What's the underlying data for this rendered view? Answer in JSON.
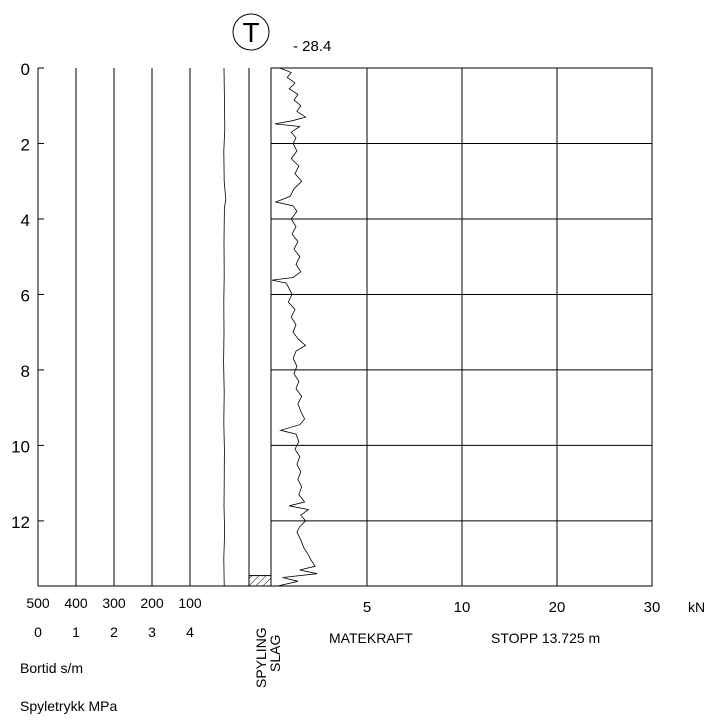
{
  "header": {
    "symbol": "T",
    "elevation": "- 28.4"
  },
  "chart_data": {
    "type": "line",
    "title": "",
    "depth_axis": {
      "ticks": [
        "0",
        "2",
        "4",
        "6",
        "8",
        "10",
        "12"
      ],
      "range": [
        0,
        13.725
      ],
      "inverted": true
    },
    "left_panel": {
      "bortid_ticks": [
        "500",
        "400",
        "300",
        "200",
        "100"
      ],
      "spyletrykk_ticks": [
        "0",
        "1",
        "2",
        "3",
        "4"
      ],
      "bortid_label": "Bortid s/m",
      "spyletrykk_label": "Spyletrykk MPa",
      "bortid_range": [
        0,
        500
      ],
      "spyletrykk_range": [
        0,
        5
      ]
    },
    "spyling_label": "SPYLING",
    "slag_label": "SLAG",
    "slag_interval": [
      13.45,
      13.725
    ],
    "right_panel": {
      "x_ticks": [
        "5",
        "10",
        "20",
        "30"
      ],
      "unit": "kN",
      "label": "MATEKRAFT",
      "grid": true
    },
    "stopp_label": "STOPP 13.725 m",
    "series": [
      {
        "id": "matekraft",
        "points": [
          [
            0.0,
            0.45
          ],
          [
            0.12,
            1.05
          ],
          [
            0.25,
            0.85
          ],
          [
            0.4,
            1.25
          ],
          [
            0.55,
            0.95
          ],
          [
            0.7,
            1.4
          ],
          [
            0.85,
            1.2
          ],
          [
            1.0,
            1.55
          ],
          [
            1.15,
            1.35
          ],
          [
            1.3,
            1.8
          ],
          [
            1.4,
            1.1
          ],
          [
            1.48,
            0.2
          ],
          [
            1.55,
            1.5
          ],
          [
            1.7,
            1.05
          ],
          [
            1.85,
            1.3
          ],
          [
            2.0,
            1.15
          ],
          [
            2.2,
            1.35
          ],
          [
            2.4,
            1.05
          ],
          [
            2.6,
            1.45
          ],
          [
            2.8,
            1.25
          ],
          [
            3.0,
            1.6
          ],
          [
            3.2,
            1.2
          ],
          [
            3.4,
            1.0
          ],
          [
            3.55,
            0.25
          ],
          [
            3.65,
            1.15
          ],
          [
            3.8,
            1.35
          ],
          [
            4.0,
            1.05
          ],
          [
            4.2,
            1.3
          ],
          [
            4.4,
            1.1
          ],
          [
            4.6,
            1.4
          ],
          [
            4.8,
            1.2
          ],
          [
            5.0,
            1.5
          ],
          [
            5.2,
            1.3
          ],
          [
            5.4,
            1.55
          ],
          [
            5.55,
            1.15
          ],
          [
            5.62,
            0.05
          ],
          [
            5.7,
            0.8
          ],
          [
            5.85,
            0.95
          ],
          [
            6.0,
            1.1
          ],
          [
            6.2,
            0.9
          ],
          [
            6.4,
            1.25
          ],
          [
            6.6,
            1.05
          ],
          [
            6.8,
            1.3
          ],
          [
            7.0,
            1.15
          ],
          [
            7.2,
            1.45
          ],
          [
            7.35,
            1.8
          ],
          [
            7.5,
            1.3
          ],
          [
            7.7,
            1.15
          ],
          [
            7.9,
            1.35
          ],
          [
            8.1,
            1.2
          ],
          [
            8.3,
            1.45
          ],
          [
            8.5,
            1.3
          ],
          [
            8.7,
            1.6
          ],
          [
            8.9,
            1.4
          ],
          [
            9.1,
            1.55
          ],
          [
            9.3,
            1.75
          ],
          [
            9.45,
            1.5
          ],
          [
            9.6,
            0.5
          ],
          [
            9.7,
            1.3
          ],
          [
            9.9,
            1.45
          ],
          [
            10.1,
            1.25
          ],
          [
            10.3,
            1.5
          ],
          [
            10.5,
            1.35
          ],
          [
            10.7,
            1.55
          ],
          [
            10.9,
            1.4
          ],
          [
            11.1,
            1.6
          ],
          [
            11.3,
            1.45
          ],
          [
            11.5,
            1.75
          ],
          [
            11.6,
            0.95
          ],
          [
            11.7,
            1.95
          ],
          [
            11.85,
            1.55
          ],
          [
            12.0,
            1.8
          ],
          [
            12.15,
            1.5
          ],
          [
            12.3,
            1.35
          ],
          [
            12.5,
            1.55
          ],
          [
            12.7,
            1.7
          ],
          [
            12.9,
            1.95
          ],
          [
            13.05,
            2.1
          ],
          [
            13.2,
            2.3
          ],
          [
            13.3,
            1.5
          ],
          [
            13.4,
            2.4
          ],
          [
            13.5,
            0.6
          ],
          [
            13.6,
            1.4
          ],
          [
            13.725,
            0.35
          ]
        ]
      },
      {
        "id": "spyletrykk",
        "points": [
          [
            0.0,
            0.5
          ],
          [
            0.8,
            0.6
          ],
          [
            1.6,
            0.7
          ],
          [
            2.2,
            0.45
          ],
          [
            3.0,
            0.55
          ],
          [
            3.5,
            0.95
          ],
          [
            3.7,
            0.6
          ],
          [
            4.6,
            0.5
          ],
          [
            5.5,
            0.55
          ],
          [
            6.2,
            0.45
          ],
          [
            7.0,
            0.5
          ],
          [
            7.8,
            0.4
          ],
          [
            8.6,
            0.55
          ],
          [
            9.4,
            0.45
          ],
          [
            10.1,
            0.6
          ],
          [
            11.0,
            0.55
          ],
          [
            11.6,
            0.5
          ],
          [
            12.3,
            0.65
          ],
          [
            13.0,
            0.45
          ],
          [
            13.725,
            0.55
          ]
        ]
      }
    ]
  }
}
